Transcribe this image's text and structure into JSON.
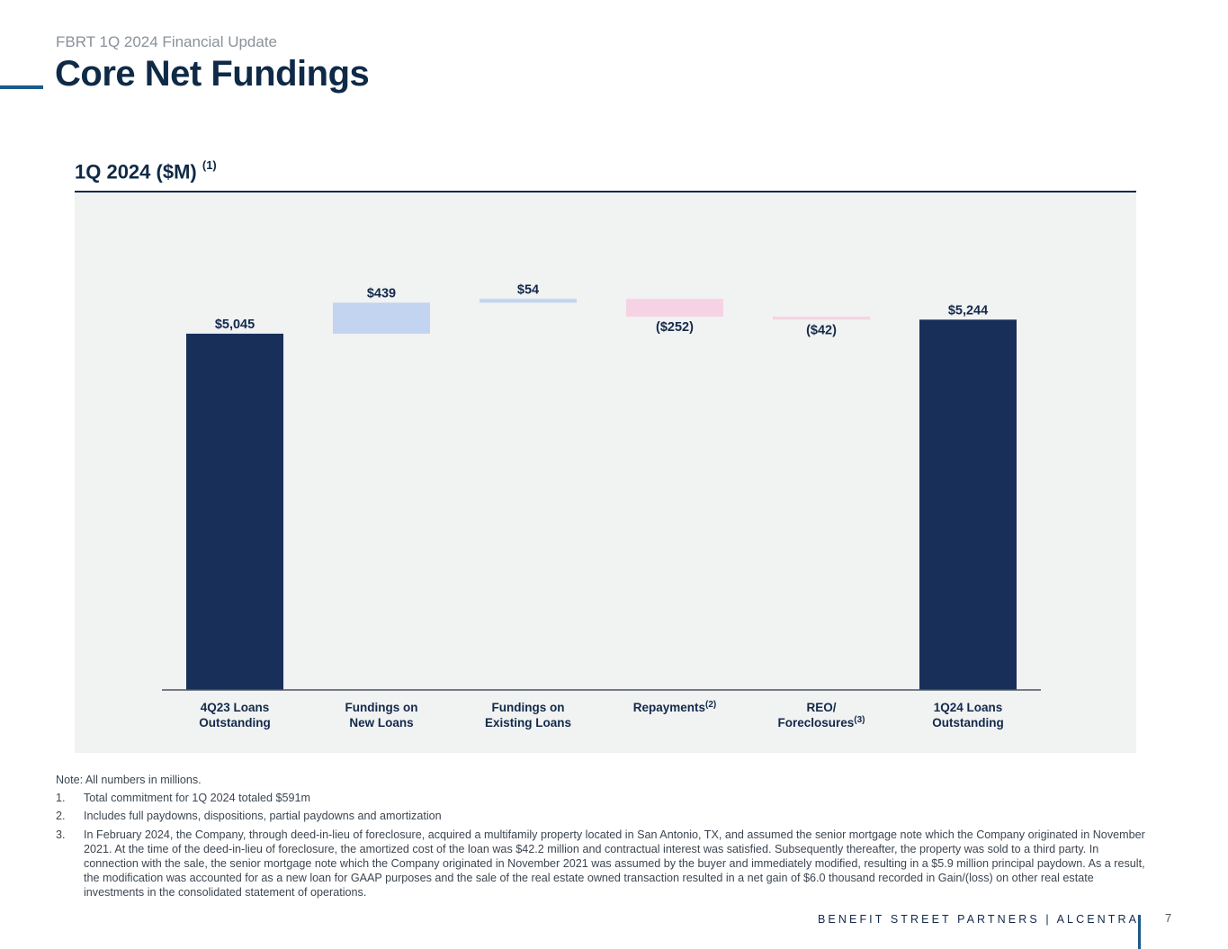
{
  "header": {
    "eyebrow": "FBRT 1Q 2024 Financial Update",
    "title": "Core Net Fundings"
  },
  "chart_header": {
    "title": "1Q 2024 ($M)",
    "footnote_ref": "(1)"
  },
  "colors": {
    "total": "#172f59",
    "increase": "#c3d4f0",
    "decrease": "#f6d3e4",
    "panel": "#f1f2f2"
  },
  "chart_data": {
    "type": "bar",
    "subtype": "waterfall",
    "title": "1Q 2024 ($M)",
    "unit": "$M",
    "ylim": [
      0,
      5700
    ],
    "grid": false,
    "categories": [
      "4Q23 Loans Outstanding",
      "Fundings on New Loans",
      "Fundings on Existing Loans",
      "Repayments",
      "REO/ Foreclosures",
      "1Q24 Loans Outstanding"
    ],
    "bars": [
      {
        "id": "4q23",
        "kind": "total",
        "value": 5045,
        "label": "$5,045",
        "cat_lines": [
          "4Q23 Loans",
          "Outstanding"
        ],
        "note": ""
      },
      {
        "id": "new",
        "kind": "increase",
        "value": 439,
        "label": "$439",
        "cat_lines": [
          "Fundings on",
          "New Loans"
        ],
        "note": ""
      },
      {
        "id": "existing",
        "kind": "increase",
        "value": 54,
        "label": "$54",
        "cat_lines": [
          "Fundings on",
          "Existing Loans"
        ],
        "note": ""
      },
      {
        "id": "repay",
        "kind": "decrease",
        "value": -252,
        "label": "($252)",
        "cat_lines": [
          "Repayments"
        ],
        "note": "(2)"
      },
      {
        "id": "reo",
        "kind": "decrease",
        "value": -42,
        "label": "($42)",
        "cat_lines": [
          "REO/",
          "Foreclosures"
        ],
        "note": "(3)"
      },
      {
        "id": "1q24",
        "kind": "total",
        "value": 5244,
        "label": "$5,244",
        "cat_lines": [
          "1Q24 Loans",
          "Outstanding"
        ],
        "note": ""
      }
    ]
  },
  "notes": {
    "intro": "Note: All numbers in millions.",
    "items": [
      {
        "num": "1.",
        "text": "Total commitment for 1Q 2024 totaled $591m"
      },
      {
        "num": "2.",
        "text": "Includes full paydowns, dispositions, partial paydowns and amortization"
      },
      {
        "num": "3.",
        "text": "In February 2024, the Company, through deed-in-lieu of foreclosure, acquired a multifamily property located in San Antonio, TX, and assumed the senior mortgage note which the Company originated in November 2021. At the time of the deed-in-lieu of foreclosure, the amortized cost of the loan was $42.2 million and contractual interest was satisfied. Subsequently thereafter, the property was sold to a third party. In connection with the sale, the senior mortgage note which the Company originated in November 2021 was assumed by the buyer and immediately modified, resulting in a $5.9 million principal paydown. As a result, the modification was accounted for as a new loan for GAAP purposes and the sale of the real estate owned transaction resulted in a net gain of $6.0 thousand recorded in Gain/(loss) on other real estate investments in the consolidated statement of operations."
      }
    ]
  },
  "footer": {
    "brand": "BENEFIT STREET PARTNERS | ALCENTRA",
    "page": "7"
  }
}
